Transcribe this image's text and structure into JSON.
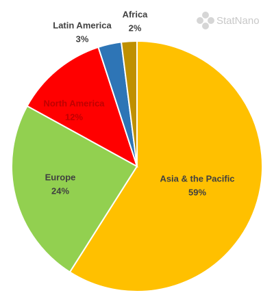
{
  "chart_data": {
    "type": "pie",
    "categories": [
      "Asia & the Pacific",
      "Europe",
      "North America",
      "Latin America",
      "Africa"
    ],
    "values": [
      59,
      24,
      12,
      3,
      2
    ],
    "value_labels": [
      "59%",
      "24%",
      "12%",
      "3%",
      "2%"
    ],
    "colors": [
      "#ffc000",
      "#92d050",
      "#ff0000",
      "#2e75b6",
      "#bf9000"
    ],
    "watermark": "StatNano"
  }
}
